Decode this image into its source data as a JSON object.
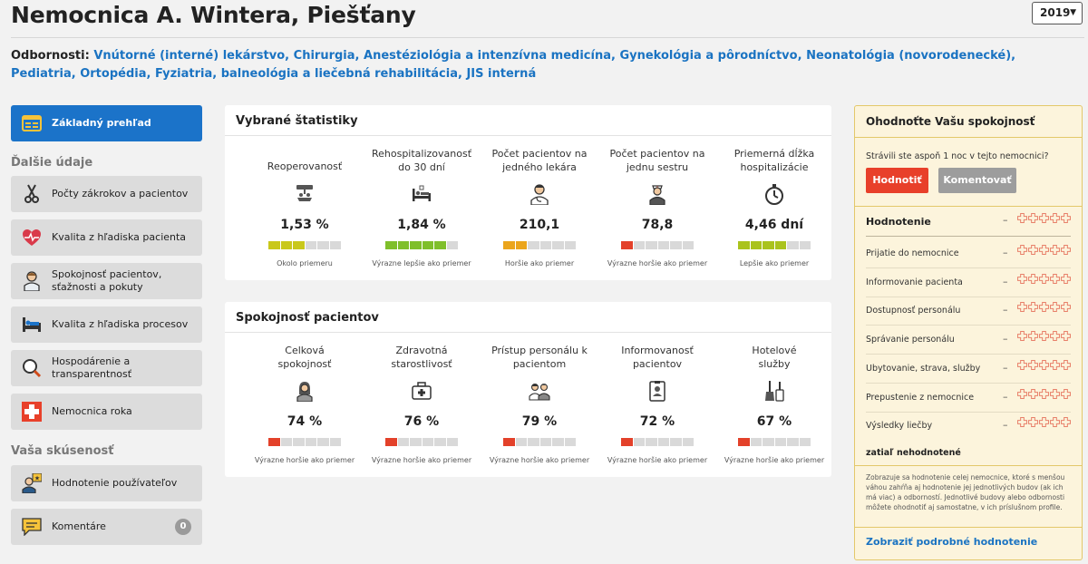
{
  "header": {
    "title": "Nemocnica A. Wintera, Piešťany",
    "year": "2019"
  },
  "specialties": {
    "label": "Odbornosti:",
    "items": [
      "Vnútorné (interné) lekárstvo",
      "Chirurgia",
      "Anestéziológia a intenzívna medicína",
      "Gynekológia a pôrodníctvo",
      "Neonatológia (novorodenecké)",
      "Pediatria",
      "Ortopédia",
      "Fyziatria, balneológia a liečebná rehabilitácia",
      "JIS interná"
    ]
  },
  "sidebar": {
    "overview": "Základný prehľad",
    "section_more": "Ďalšie údaje",
    "more_items": [
      {
        "line1": "Počty zákrokov a pacientov",
        "line2": ""
      },
      {
        "line1": "Kvalita z hľadiska pacienta",
        "line2": ""
      },
      {
        "line1": "Spokojnosť pacientov,",
        "line2": "sťažnosti a pokuty"
      },
      {
        "line1": "Kvalita z hľadiska procesov",
        "line2": ""
      },
      {
        "line1": "Hospodárenie a",
        "line2": "transparentnosť"
      },
      {
        "line1": "Nemocnica roka",
        "line2": ""
      }
    ],
    "section_experience": "Vaša skúsenosť",
    "experience_items": [
      {
        "line1": "Hodnotenie používateľov"
      },
      {
        "line1": "Komentáre",
        "badge": "0"
      }
    ]
  },
  "stats_card": {
    "title": "Vybrané štatistiky",
    "items": [
      {
        "label1": "Reoperovanosť",
        "label2": "",
        "value": "1,53 %",
        "verdict": "Okolo priemeru",
        "filled": 3,
        "color": "#c9c81b",
        "icon": "operation-icon"
      },
      {
        "label1": "Rehospitalizovanosť",
        "label2": "do 30 dní",
        "value": "1,84 %",
        "verdict": "Výrazne lepšie ako priemer",
        "filled": 5,
        "color": "#7fbf2b",
        "icon": "hospital-bed-icon"
      },
      {
        "label1": "Počet pacientov na",
        "label2": "jedného lekára",
        "value": "210,1",
        "verdict": "Horšie ako priemer",
        "filled": 2,
        "color": "#eba51c",
        "icon": "doctor-icon"
      },
      {
        "label1": "Počet pacientov na",
        "label2": "jednu sestru",
        "value": "78,8",
        "verdict": "Výrazne horšie ako priemer",
        "filled": 1,
        "color": "#e3412a",
        "icon": "nurse-icon"
      },
      {
        "label1": "Priemerná dĺžka",
        "label2": "hospitalizácie",
        "value": "4,46 dní",
        "verdict": "Lepšie ako priemer",
        "filled": 4,
        "color": "#aac31d",
        "icon": "stopwatch-icon"
      }
    ]
  },
  "satisfaction_card": {
    "title": "Spokojnosť pacientov",
    "items": [
      {
        "label1": "Celková",
        "label2": "spokojnosť",
        "value": "74 %",
        "verdict": "Výrazne horšie ako priemer",
        "filled": 1,
        "color": "#e3412a",
        "icon": "patient-icon"
      },
      {
        "label1": "Zdravotná",
        "label2": "starostlivosť",
        "value": "76 %",
        "verdict": "Výrazne horšie ako priemer",
        "filled": 1,
        "color": "#e3412a",
        "icon": "medical-bag-icon"
      },
      {
        "label1": "Prístup personálu k",
        "label2": "pacientom",
        "value": "79 %",
        "verdict": "Výrazne horšie ako priemer",
        "filled": 1,
        "color": "#e3412a",
        "icon": "staff-icon"
      },
      {
        "label1": "Informovanosť",
        "label2": "pacientov",
        "value": "72 %",
        "verdict": "Výrazne horšie ako priemer",
        "filled": 1,
        "color": "#e3412a",
        "icon": "id-badge-icon"
      },
      {
        "label1": "Hotelové",
        "label2": "služby",
        "value": "67 %",
        "verdict": "Výrazne horšie ako priemer",
        "filled": 1,
        "color": "#e3412a",
        "icon": "cleaning-icon"
      }
    ]
  },
  "rating_panel": {
    "title": "Ohodnoťte Vašu spokojnosť",
    "question": "Strávili ste aspoň 1 noc v tejto nemocnici?",
    "rate_button": "Hodnotiť",
    "comment_button": "Komentovať",
    "main_label": "Hodnotenie",
    "dash": "–",
    "rows": [
      "Prijatie do nemocnice",
      "Informovanie pacienta",
      "Dostupnosť personálu",
      "Správanie personálu",
      "Ubytovanie, strava, služby",
      "Prepustenie z nemocnice",
      "Výsledky liečby"
    ],
    "not_rated": "zatiaľ nehodnotené",
    "note": "Zobrazuje sa hodnotenie celej nemocnice, ktoré s menšou váhou zahŕňa aj hodnotenie jej jednotlivých budov (ak ich má viac) a odborností. Jednotlivé budovy alebo odbornosti môžete ohodnotiť aj samostatne, v ich príslušnom profile.",
    "link": "Zobraziť podrobné hodnotenie",
    "star_color": "#e8806a"
  }
}
